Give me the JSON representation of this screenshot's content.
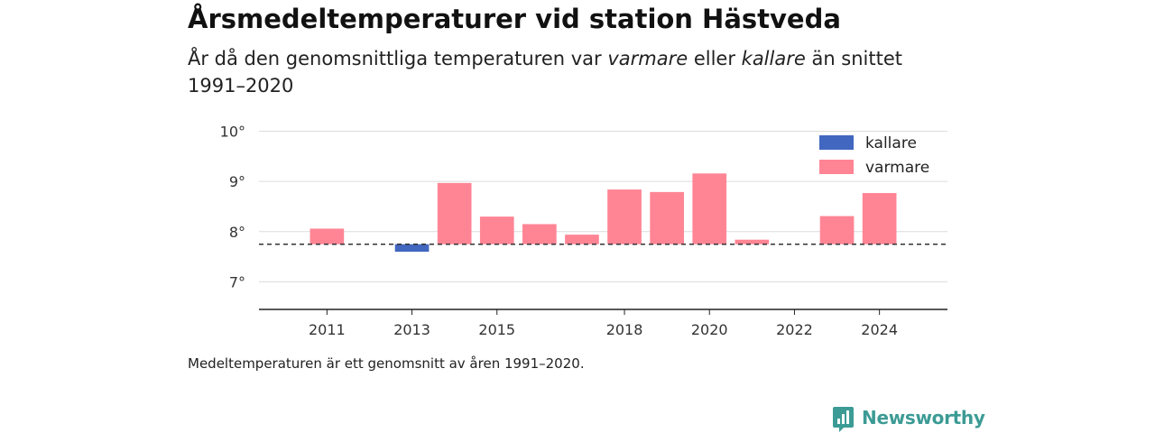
{
  "header": {
    "title": "Årsmedeltemperaturer vid station Hästveda",
    "subtitle_part1": "År då den genomsnittliga temperaturen var ",
    "subtitle_warm": "varmare",
    "subtitle_part2": " eller ",
    "subtitle_cold": "kallare",
    "subtitle_part3": " än snittet 1991–2020"
  },
  "footer": {
    "note": "Medeltemperaturen är ett genomsnitt av åren 1991–2020.",
    "brand": "Newsworthy"
  },
  "colors": {
    "warm": "#ff8595",
    "cold": "#4267c0",
    "brand": "#3c9b95"
  },
  "chart_data": {
    "type": "bar",
    "baseline": 7.75,
    "ylim": [
      6.45,
      10.1
    ],
    "yticks": [
      7,
      8,
      9,
      10
    ],
    "ytick_labels": [
      "7°",
      "8°",
      "9°",
      "10°"
    ],
    "xlim": [
      2009.4,
      2025.6
    ],
    "xticks": [
      2011,
      2013,
      2015,
      2018,
      2020,
      2022,
      2024
    ],
    "xtick_labels": [
      "2011",
      "2013",
      "2015",
      "2018",
      "2020",
      "2022",
      "2024"
    ],
    "grid": true,
    "legend": {
      "position": "top-right",
      "items": [
        "kallare",
        "varmare"
      ]
    },
    "series": [
      {
        "name": "varmare",
        "color": "#ff8595",
        "points": [
          {
            "x": 2011,
            "y": 8.06
          },
          {
            "x": 2014,
            "y": 8.97
          },
          {
            "x": 2015,
            "y": 8.3
          },
          {
            "x": 2016,
            "y": 8.15
          },
          {
            "x": 2017,
            "y": 7.94
          },
          {
            "x": 2018,
            "y": 8.84
          },
          {
            "x": 2019,
            "y": 8.79
          },
          {
            "x": 2020,
            "y": 9.16
          },
          {
            "x": 2021,
            "y": 7.84
          },
          {
            "x": 2023,
            "y": 8.31
          },
          {
            "x": 2024,
            "y": 8.77
          }
        ]
      },
      {
        "name": "kallare",
        "color": "#4267c0",
        "points": [
          {
            "x": 2013,
            "y": 7.6
          }
        ]
      }
    ]
  }
}
